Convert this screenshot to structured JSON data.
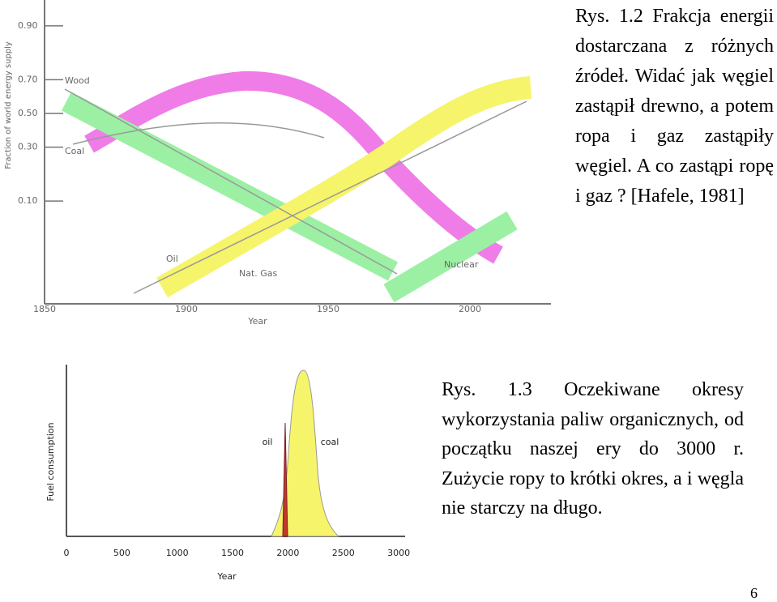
{
  "figure1": {
    "y_axis_label": "Fraction of world energy supply",
    "yticks": [
      "0.90",
      "0.70",
      "0.50",
      "0.30",
      "0.10"
    ],
    "xticks": [
      "1850",
      "1900",
      "1950",
      "2000"
    ],
    "x_axis_label": "Year",
    "labels": {
      "wood": "Wood",
      "coal": "Coal",
      "oil": "Oil",
      "gas": "Nat. Gas",
      "nuclear": "Nuclear"
    }
  },
  "caption1": "Rys. 1.2 Frakcja energii dostarczana z różnych źródeł. Widać jak węgiel zastąpił drewno, a potem ropa i gaz zastąpiły węgiel. A co zastąpi ropę i gaz ? [Hafele, 1981]",
  "figure2": {
    "y_axis_label": "Fuel consumption",
    "xticks": [
      "0",
      "500",
      "1000",
      "1500",
      "2000",
      "2500",
      "3000"
    ],
    "x_axis_label": "Year",
    "labels": {
      "oil": "oil",
      "coal": "coal"
    }
  },
  "caption2": "Rys. 1.3 Oczekiwane okresy wykorzystania paliw organicznych, od początku naszej ery do 3000 r. Zużycie ropy to krótki okres, a i węgla nie starczy na długo.",
  "page_number": "6"
}
